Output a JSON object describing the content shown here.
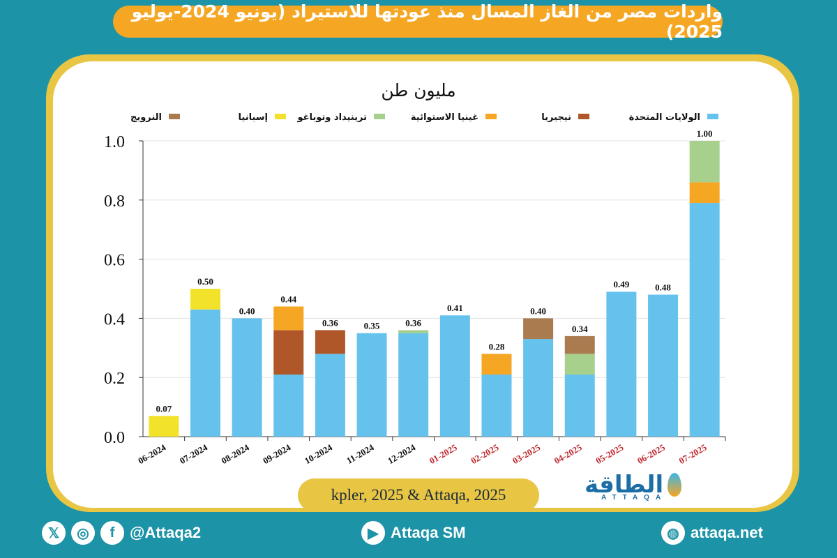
{
  "header": {
    "title": "واردات مصر من الغاز المسال منذ عودتها للاستيراد (يونيو 2024-يوليو 2025)"
  },
  "footer": {
    "source": "kpler, 2025 & Attaqa, 2025",
    "social_handle": "@Attaqa2",
    "youtube_label": "Attaqa SM",
    "website": "attaqa.net",
    "logo_text": "الطاقة",
    "logo_latin": "ATTAQA"
  },
  "colors": {
    "background": "#1c93a6",
    "accent_orange": "#f5a623",
    "frame_yellow": "#e8c543"
  },
  "icons": [
    "x-icon",
    "instagram-icon",
    "facebook-icon",
    "youtube-icon",
    "globe-icon"
  ],
  "chart_data": {
    "type": "bar",
    "stacked": true,
    "unit_label": "مليون طن",
    "ylim": [
      0,
      1.0
    ],
    "yticks": [
      "0.0",
      "0.2",
      "0.4",
      "0.6",
      "0.8",
      "1.0"
    ],
    "grid": true,
    "legend_position": "top",
    "categories": [
      "06-2024",
      "07-2024",
      "08-2024",
      "09-2024",
      "10-2024",
      "11-2024",
      "12-2024",
      "01-2025",
      "02-2025",
      "03-2025",
      "04-2025",
      "05-2025",
      "06-2025",
      "07-2025"
    ],
    "category_label_colors": [
      "#111111",
      "#111111",
      "#111111",
      "#111111",
      "#111111",
      "#111111",
      "#111111",
      "#c0262d",
      "#c0262d",
      "#c0262d",
      "#c0262d",
      "#c0262d",
      "#c0262d",
      "#c0262d"
    ],
    "totals": [
      "0.07",
      "0.50",
      "0.40",
      "0.44",
      "0.36",
      "0.35",
      "0.36",
      "0.41",
      "0.28",
      "0.40",
      "0.34",
      "0.49",
      "0.48",
      "1.00"
    ],
    "series": [
      {
        "name": "الولايات المتحدة",
        "color": "#65c2ed",
        "values": [
          0,
          0.43,
          0.4,
          0.21,
          0.28,
          0.35,
          0.35,
          0.41,
          0.21,
          0.33,
          0.21,
          0.49,
          0.48,
          0.79
        ]
      },
      {
        "name": "إسبانيا",
        "color": "#f2e22a",
        "values": [
          0.07,
          0.07,
          0,
          0,
          0,
          0,
          0,
          0,
          0,
          0,
          0,
          0,
          0,
          0
        ]
      },
      {
        "name": "نيجيريا",
        "color": "#b0572a",
        "values": [
          0,
          0,
          0,
          0.15,
          0.08,
          0,
          0,
          0,
          0,
          0,
          0,
          0,
          0,
          0
        ]
      },
      {
        "name": "غينيا الاستوائية",
        "color": "#f5a623",
        "values": [
          0,
          0,
          0,
          0.08,
          0,
          0,
          0,
          0,
          0.07,
          0,
          0,
          0,
          0,
          0.07
        ]
      },
      {
        "name": "ترينيداد وتوباغو",
        "color": "#a8d08d",
        "values": [
          0,
          0,
          0,
          0,
          0,
          0,
          0.01,
          0,
          0,
          0,
          0.07,
          0,
          0,
          0.14
        ]
      },
      {
        "name": "النرويج",
        "color": "#a97b4f",
        "values": [
          0,
          0,
          0,
          0,
          0,
          0,
          0,
          0,
          0,
          0.07,
          0.06,
          0,
          0,
          0
        ]
      }
    ],
    "legend_order": [
      "الولايات المتحدة",
      "نيجيريا",
      "غينيا الاستوائية",
      "ترينيداد وتوباغو",
      "إسبانيا",
      "النرويج"
    ]
  }
}
